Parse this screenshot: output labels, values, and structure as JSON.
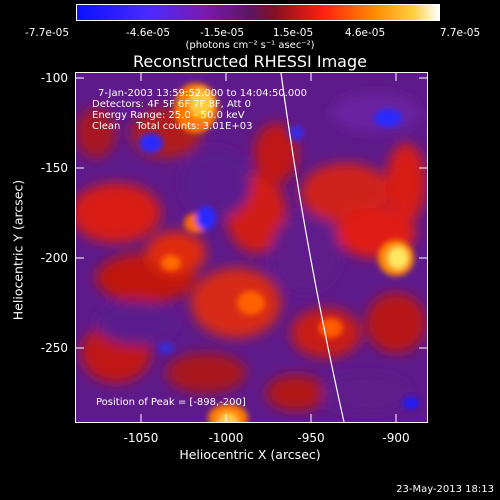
{
  "colorbar": {
    "ticks": [
      "-7.7e-05",
      "-4.6e-05",
      "-1.5e-05",
      "1.5e-05",
      "4.6e-05",
      "7.7e-05"
    ],
    "units": "(photons cm⁻² s⁻¹ asec⁻²)",
    "range": [
      -7.7e-05,
      7.7e-05
    ]
  },
  "title": "Reconstructed RHESSI Image",
  "info": {
    "time": "7-Jan-2003 13:59:52.000 to 14:04:50.000",
    "detectors": "Detectors: 4F 5F 6F 7F 8F, Att 0",
    "energy": "Energy Range: 25.0 - 50.0 keV",
    "algo": "Clean     Total counts: 3.01E+03"
  },
  "peak": "Position of Peak = [-898,-200]",
  "x_axis": {
    "label": "Heliocentric X (arcsec)",
    "ticks": [
      "-1050",
      "-1000",
      "-950",
      "-900"
    ]
  },
  "y_axis": {
    "label": "Heliocentric Y (arcsec)",
    "ticks": [
      "-100",
      "-150",
      "-200",
      "-250"
    ]
  },
  "datestamp": "23-May-2013 18:13",
  "colors": {
    "blue": "#1a1aff",
    "purple": "#5a1a8c",
    "red": "#d91a1a",
    "orange": "#ff7a00",
    "yellow": "#ffee44",
    "white": "#ffffff"
  }
}
